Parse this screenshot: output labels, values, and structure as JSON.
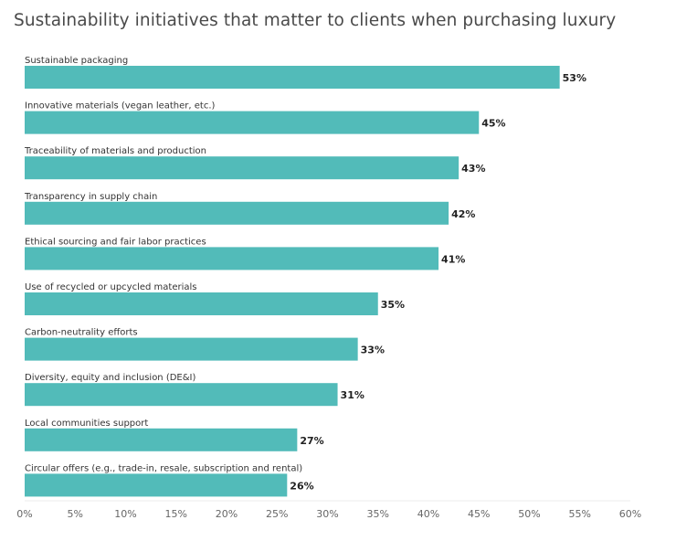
{
  "chart_data": {
    "type": "bar",
    "orientation": "horizontal",
    "title": "Sustainability initiatives that matter to clients when purchasing luxury",
    "xlabel": "",
    "ylabel": "",
    "categories": [
      "Sustainable packaging",
      "Innovative materials (vegan leather, etc.)",
      "Traceability of materials and production",
      "Transparency in supply chain",
      "Ethical sourcing and fair labor practices",
      "Use of recycled or upcycled materials",
      "Carbon-neutrality efforts",
      "Diversity, equity and inclusion (DE&I)",
      "Local communities support",
      "Circular offers (e.g., trade-in, resale, subscription and rental)"
    ],
    "values": [
      53,
      45,
      43,
      42,
      41,
      35,
      33,
      31,
      27,
      26
    ],
    "value_labels": [
      "53%",
      "45%",
      "43%",
      "42%",
      "41%",
      "35%",
      "33%",
      "31%",
      "27%",
      "26%"
    ],
    "xlim": [
      0,
      60
    ],
    "xticks": [
      "0%",
      "5%",
      "10%",
      "15%",
      "20%",
      "25%",
      "30%",
      "35%",
      "40%",
      "45%",
      "50%",
      "55%",
      "60%"
    ],
    "grid": false,
    "bar_color": "#52bbb9"
  }
}
